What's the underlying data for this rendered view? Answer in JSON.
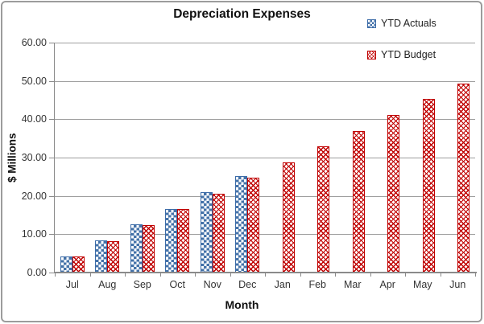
{
  "chart_data": {
    "type": "bar",
    "title": "Depreciation Expenses",
    "xlabel": "Month",
    "ylabel": "$ Millions",
    "categories": [
      "Jul",
      "Aug",
      "Sep",
      "Oct",
      "Nov",
      "Dec",
      "Jan",
      "Feb",
      "Mar",
      "Apr",
      "May",
      "Jun"
    ],
    "series": [
      {
        "name": "YTD Actuals",
        "pattern": "blue-checkerboard",
        "color": "#4472a8",
        "values": [
          4.2,
          8.4,
          12.5,
          16.6,
          20.9,
          25.1,
          null,
          null,
          null,
          null,
          null,
          null
        ]
      },
      {
        "name": "YTD Budget",
        "pattern": "red-woven-crosshatch",
        "color": "#c00000",
        "values": [
          4.1,
          8.2,
          12.3,
          16.5,
          20.6,
          24.7,
          28.8,
          32.9,
          37.0,
          41.2,
          45.3,
          49.4
        ]
      }
    ],
    "ylim": [
      0,
      60
    ],
    "y_tick_step": 10,
    "y_tick_labels": [
      "0.00",
      "10.00",
      "20.00",
      "30.00",
      "40.00",
      "50.00",
      "60.00"
    ],
    "grid": true,
    "legend_position": "top-right"
  },
  "colors": {
    "accent_blue": "#4472a8",
    "accent_red": "#c00000",
    "gridline": "#9e9e9e",
    "axis": "#8a8a8a",
    "chart_border": "#9c9c9c",
    "text": "#333333"
  }
}
